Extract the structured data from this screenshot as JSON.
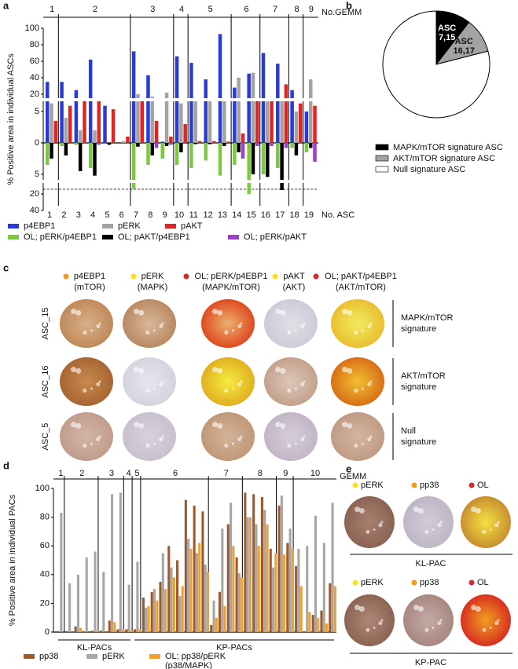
{
  "panel_labels": [
    "a",
    "b",
    "c",
    "d",
    "e"
  ],
  "chart_data": [
    {
      "type": "bar",
      "y_label": "% Positive area in individual ASCs",
      "group_axis_label": "No.GEMM",
      "x_label": "No. ASC",
      "groups": [
        {
          "label": "1",
          "size": 1
        },
        {
          "label": "2",
          "size": 5
        },
        {
          "label": "3",
          "size": 3
        },
        {
          "label": "4",
          "size": 1
        },
        {
          "label": "5",
          "size": 3
        },
        {
          "label": "6",
          "size": 2
        },
        {
          "label": "7",
          "size": 2
        },
        {
          "label": "8",
          "size": 1
        },
        {
          "label": "9",
          "size": 1
        }
      ],
      "categories": [
        "1",
        "2",
        "3",
        "4",
        "5",
        "6",
        "7",
        "8",
        "9",
        "10",
        "11",
        "12",
        "13",
        "14",
        "15",
        "16",
        "17",
        "18",
        "19"
      ],
      "ylim": [
        0,
        100
      ],
      "y_segments": [
        [
          0,
          5
        ],
        [
          5,
          20
        ],
        [
          20,
          100
        ]
      ],
      "yticks": [
        0,
        5,
        20,
        40,
        60,
        80,
        100
      ],
      "y2lim": [
        0,
        40
      ],
      "y2_segments": [
        [
          0,
          5
        ],
        [
          5,
          20
        ],
        [
          20,
          40
        ]
      ],
      "y2ticks": [
        5,
        20,
        40
      ],
      "series": [
        {
          "name": "p4EBP1",
          "color": "#2a3bd4",
          "values": [
            35,
            35,
            25,
            62,
            10,
            0,
            72,
            43,
            0.2,
            66,
            58,
            38,
            93,
            28,
            45,
            70,
            57,
            25,
            5
          ]
        },
        {
          "name": "pERK",
          "color": "#a3a3a3",
          "values": [
            12,
            4,
            2,
            2,
            0,
            0.3,
            20,
            18,
            22,
            12,
            15,
            15,
            15,
            40,
            46,
            16,
            14,
            5,
            38
          ]
        },
        {
          "name": "pAKT",
          "color": "#e02424",
          "values": [
            3.5,
            10,
            15,
            16,
            7,
            1,
            14,
            3.5,
            1,
            3,
            0.3,
            0.3,
            0.2,
            1.5,
            15,
            15,
            32,
            12,
            10
          ]
        },
        {
          "name": "OL; pERK/p4EBP1",
          "color": "#7cc843",
          "axis": "y2",
          "values": [
            3.5,
            0.5,
            0.3,
            4,
            0,
            0,
            16,
            3.5,
            2.5,
            3.5,
            4,
            2.8,
            6,
            3.5,
            20,
            5,
            4,
            0.8,
            1.5
          ]
        },
        {
          "name": "OL; pAKT/p4EBP1",
          "color": "#000000",
          "axis": "y2",
          "values": [
            2.5,
            2,
            4.5,
            6,
            0.3,
            0,
            0.6,
            2,
            0.5,
            1.5,
            0.2,
            0.2,
            0.5,
            1.5,
            5,
            7,
            17,
            2,
            0.8
          ]
        },
        {
          "name": "OL; pERK/pAKT",
          "color": "#9b40c8",
          "axis": "y2",
          "values": [
            0,
            0,
            0,
            0.3,
            0,
            0,
            0,
            0.8,
            0.3,
            0,
            0,
            0,
            0,
            2.5,
            0.5,
            0.5,
            0.8,
            0,
            3
          ]
        }
      ]
    },
    {
      "type": "pie",
      "categories": [
        "MAPK/mTOR signature ASC",
        "AKT/mTOR signature ASC",
        "Null signature ASC"
      ],
      "values": [
        10.5,
        10.5,
        79
      ],
      "colors": [
        "#000000",
        "#a3a3a3",
        "#ffffff"
      ],
      "slice_labels": [
        [
          "ASC",
          "7,15"
        ],
        [
          "ASC",
          "16,17"
        ]
      ]
    },
    {
      "type": "bar",
      "y_label": "% Positive area in individual PACs",
      "group_axis_label": "GEMM",
      "groups": [
        {
          "label": "1",
          "size": 1
        },
        {
          "label": "2",
          "size": 4
        },
        {
          "label": "3",
          "size": 3
        },
        {
          "label": "4",
          "size": 1
        },
        {
          "label": "5",
          "size": 1
        },
        {
          "label": "6",
          "size": 8
        },
        {
          "label": "7",
          "size": 4
        },
        {
          "label": "8",
          "size": 4
        },
        {
          "label": "9",
          "size": 2
        },
        {
          "label": "10",
          "size": 5
        }
      ],
      "cohorts": [
        {
          "label": "KL-PACs",
          "size": 9
        },
        {
          "label": "KP-PACs",
          "size": 24
        }
      ],
      "ylim": [
        0,
        100
      ],
      "yticks": [
        0,
        20,
        40,
        60,
        80,
        100
      ],
      "series": [
        {
          "name": "pp38",
          "color": "#9c5a2e",
          "values": [
            0,
            0,
            4,
            0,
            1,
            1,
            8,
            2,
            2,
            2,
            24,
            28,
            35,
            60,
            50,
            92,
            88,
            84,
            5,
            28,
            75,
            52,
            97,
            96,
            94,
            58,
            88,
            62,
            46,
            0,
            12,
            15,
            34
          ]
        },
        {
          "name": "pERK",
          "color": "#a6a6a6",
          "values": [
            83,
            34,
            40,
            52,
            56,
            42,
            96,
            97,
            33,
            49,
            17,
            30,
            55,
            45,
            25,
            65,
            55,
            47,
            22,
            72,
            90,
            41,
            80,
            75,
            85,
            45,
            95,
            72,
            58,
            60,
            81,
            62,
            90
          ]
        },
        {
          "name": "OL; pp38/pERK",
          "note": "(p38/MAPK)",
          "color": "#f0a030",
          "values": [
            0,
            0,
            3,
            0,
            1,
            0,
            7,
            2,
            1,
            2,
            18,
            22,
            30,
            38,
            32,
            58,
            62,
            42,
            10,
            18,
            60,
            38,
            80,
            60,
            75,
            55,
            54,
            58,
            32,
            14,
            10,
            6,
            32
          ]
        }
      ]
    }
  ],
  "panel_c": {
    "columns": [
      {
        "name": "p4EBP1",
        "note": "(mTOR)",
        "marker_color": "#f39a1e"
      },
      {
        "name": "pERK",
        "note": "(MAPK)",
        "marker_color": "#f5e21b"
      },
      {
        "name": "OL; pERK/p4EBP1",
        "note": "(MAPK/mTOR)",
        "marker_color": "#d9282f"
      },
      {
        "name": "pAKT",
        "note": "(AKT)",
        "marker_color": "#f5e21b"
      },
      {
        "name": "OL; pAKT/p4EBP1",
        "note": "(AKT/mTOR)",
        "marker_color": "#d9282f"
      }
    ],
    "rows": [
      "ASC_15",
      "ASC_16",
      "ASC_5"
    ],
    "signatures": [
      [
        "MAPK/mTOR",
        "signature"
      ],
      [
        "AKT/mTOR",
        "signature"
      ],
      [
        "Null",
        "signature"
      ]
    ]
  },
  "panel_e": {
    "columns": [
      {
        "name": "pERK",
        "marker_color": "#f5e21b"
      },
      {
        "name": "pp38",
        "marker_color": "#f39a1e"
      },
      {
        "name": "OL",
        "marker_color": "#d9282f"
      }
    ],
    "rows": [
      "KL-PAC",
      "KP-PAC"
    ]
  }
}
